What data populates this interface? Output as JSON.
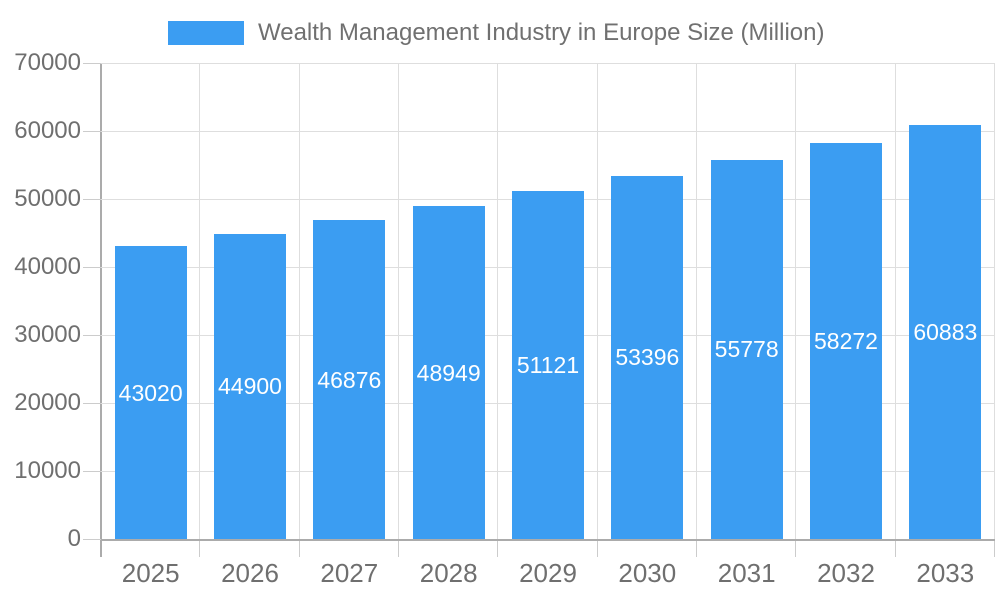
{
  "chart_data": {
    "type": "bar",
    "title": "Wealth Management Industry in Europe Size (Million)",
    "categories": [
      "2025",
      "2026",
      "2027",
      "2028",
      "2029",
      "2030",
      "2031",
      "2032",
      "2033"
    ],
    "values": [
      43020,
      44900,
      46876,
      48949,
      51121,
      53396,
      55778,
      58272,
      60883
    ],
    "xlabel": "",
    "ylabel": "",
    "ylim": [
      0,
      70000
    ],
    "yticks": [
      0,
      10000,
      20000,
      30000,
      40000,
      50000,
      60000,
      70000
    ],
    "grid": true,
    "legend_position": "top",
    "bar_color": "#3b9df2",
    "bar_label_color": "#ffffff",
    "axis_text_color": "#6f6f6f",
    "gridline_color": "#dedede",
    "axis_line_color": "#ababab"
  }
}
